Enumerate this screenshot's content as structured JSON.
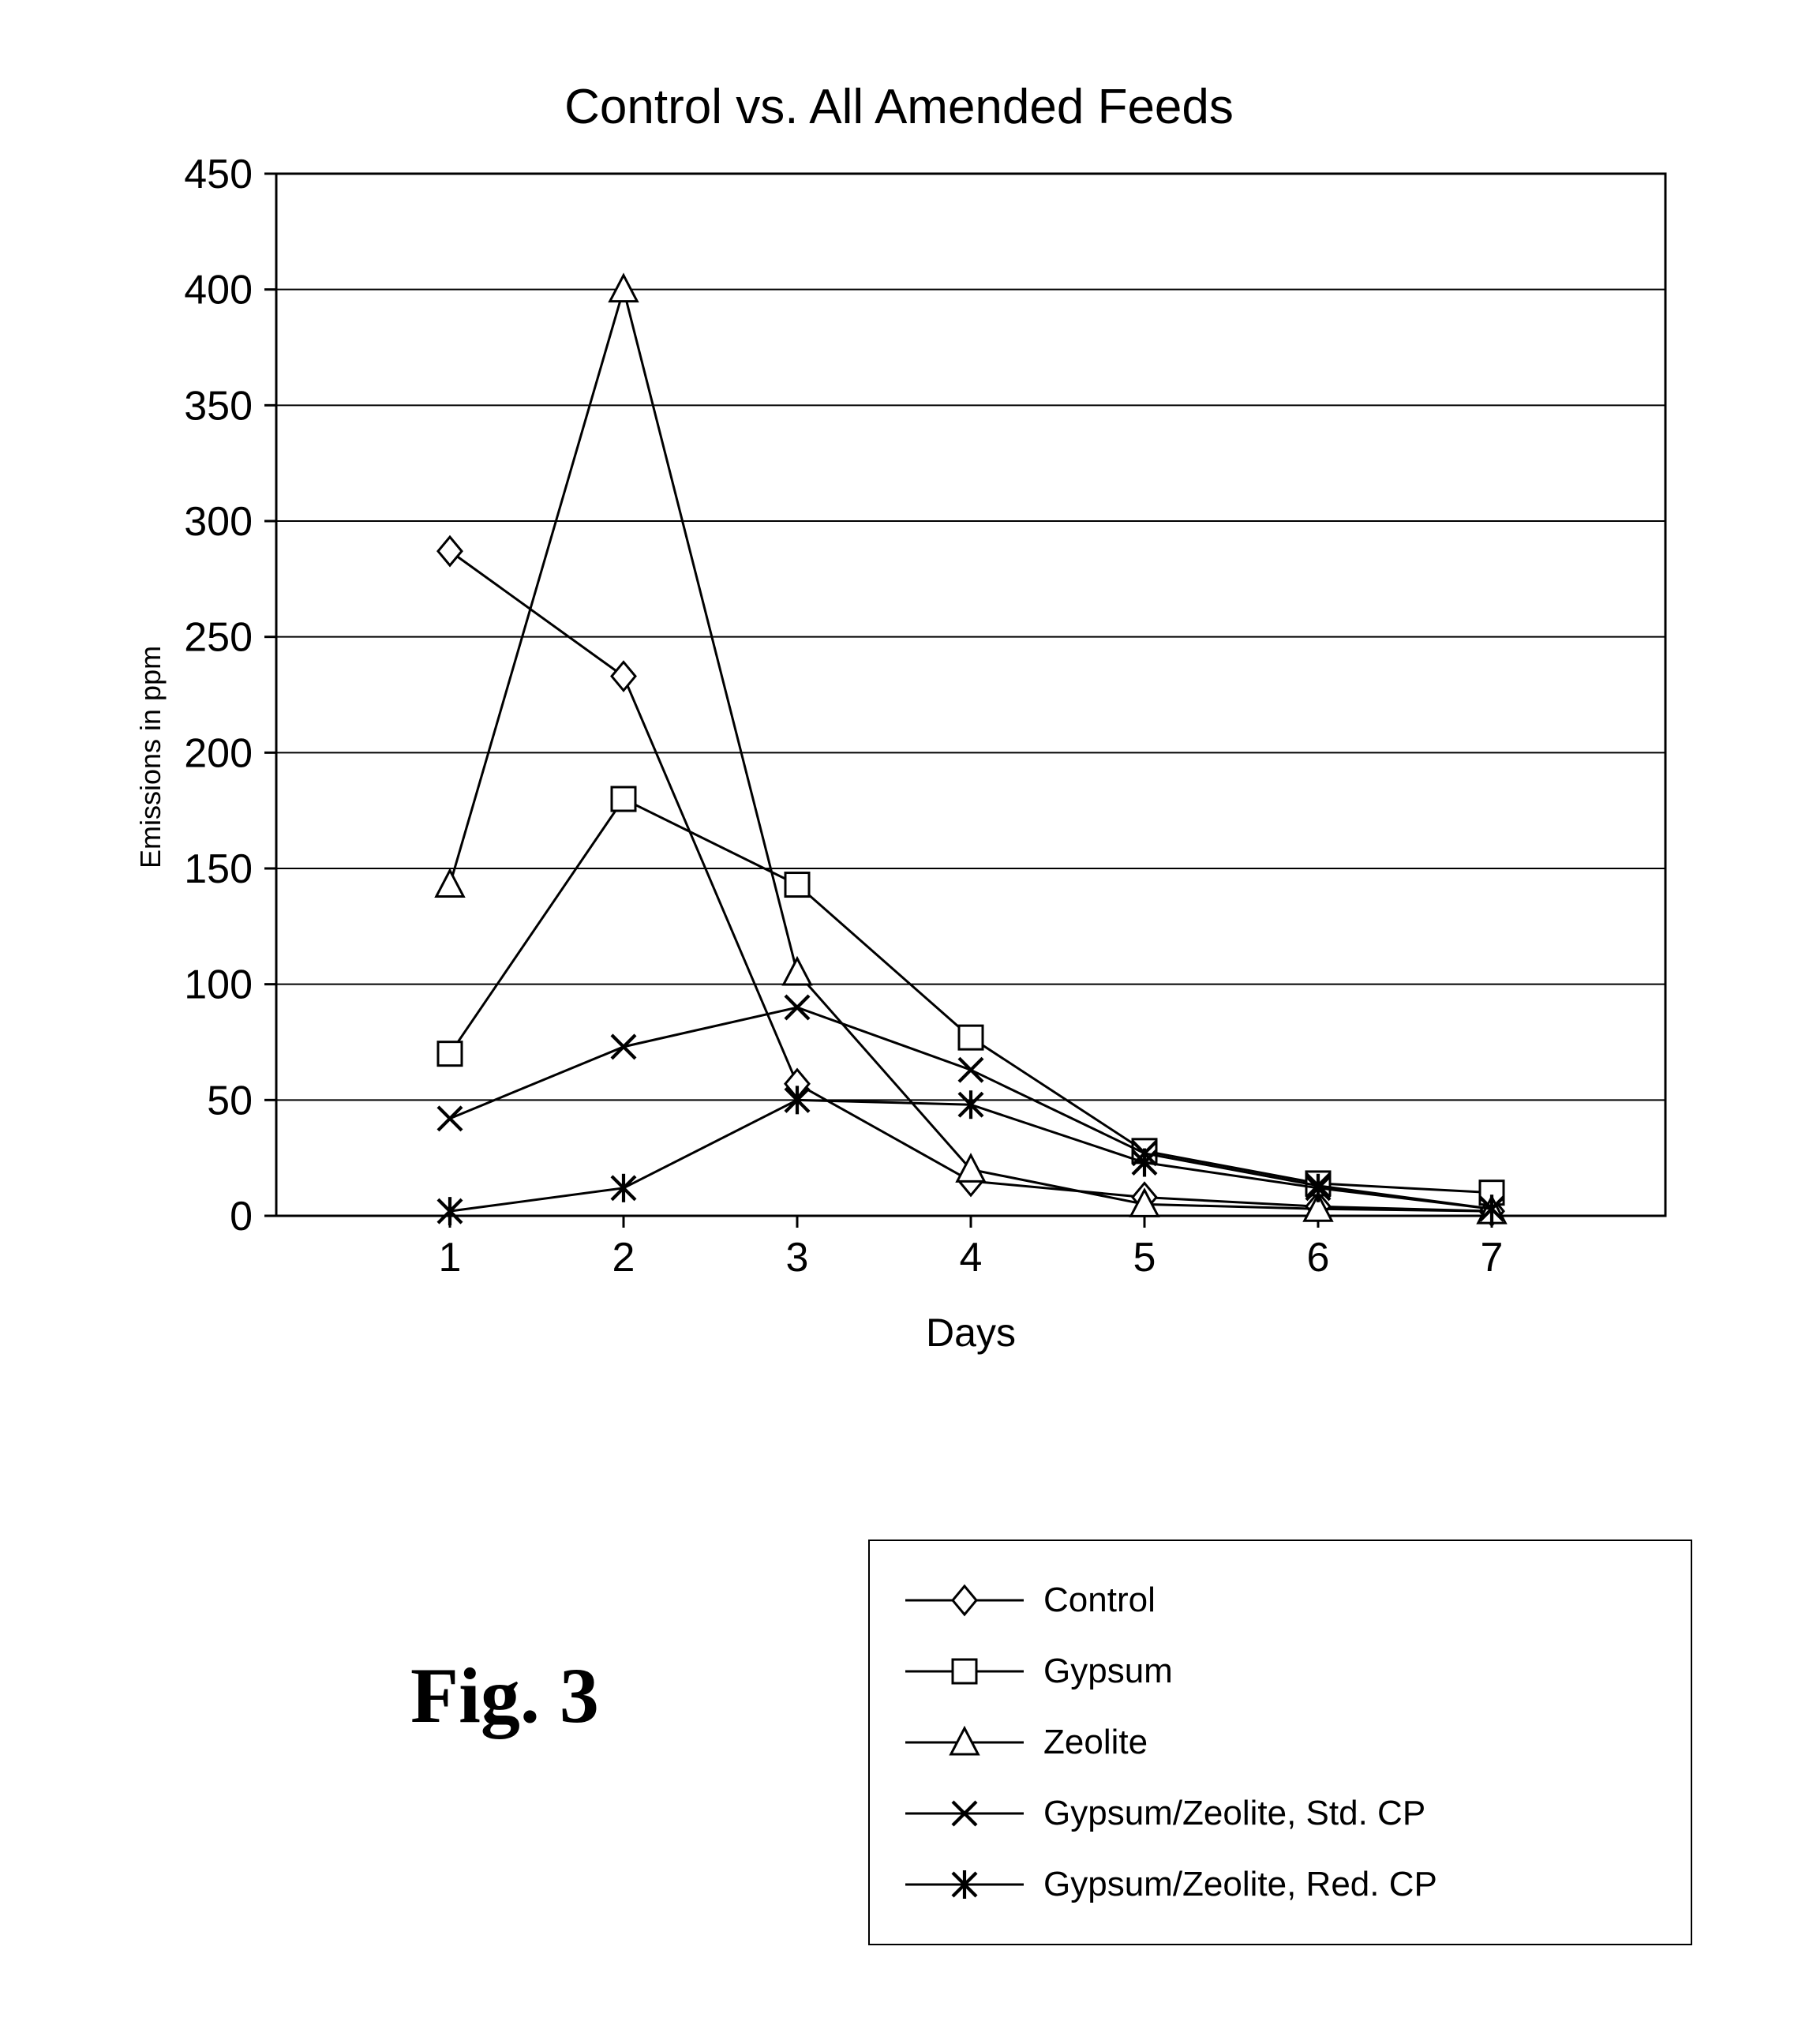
{
  "chart": {
    "type": "line",
    "title": "Control vs. All Amended Feeds",
    "title_fontsize": 62,
    "figure_label": "Fig. 3",
    "background_color": "#ffffff",
    "plot_background_color": "#ffffff",
    "grid_color": "#000000",
    "grid_line_width": 2,
    "axis_line_color": "#000000",
    "axis_line_width": 3,
    "x": {
      "label": "Days",
      "label_fontsize": 50,
      "categories": [
        "1",
        "2",
        "3",
        "4",
        "5",
        "6",
        "7"
      ],
      "tick_fontsize": 52
    },
    "y": {
      "label": "Emissions in ppm",
      "label_fontsize": 36,
      "min": 0,
      "max": 450,
      "ticks": [
        0,
        50,
        100,
        150,
        200,
        250,
        300,
        350,
        400,
        450
      ],
      "tick_fontsize": 52
    },
    "line_color": "#000000",
    "line_width": 3,
    "marker_stroke_color": "#000000",
    "marker_fill_color": "#ffffff",
    "marker_stroke_width": 3,
    "marker_size": 30,
    "series": [
      {
        "name": "Control",
        "marker": "diamond",
        "values": [
          287,
          233,
          57,
          15,
          8,
          4,
          2
        ]
      },
      {
        "name": "Gypsum",
        "marker": "square",
        "values": [
          70,
          180,
          143,
          77,
          28,
          14,
          10
        ]
      },
      {
        "name": "Zeolite",
        "marker": "triangle",
        "values": [
          143,
          400,
          105,
          20,
          5,
          3,
          2
        ]
      },
      {
        "name": "Gypsum/Zeolite, Std. CP",
        "marker": "x",
        "values": [
          42,
          73,
          90,
          63,
          27,
          13,
          3
        ]
      },
      {
        "name": "Gypsum/Zeolite, Red. CP",
        "marker": "asterisk",
        "values": [
          2,
          12,
          50,
          48,
          23,
          12,
          3
        ]
      }
    ],
    "legend": {
      "border_color": "#000000",
      "border_width": 2,
      "item_fontsize": 44
    }
  }
}
